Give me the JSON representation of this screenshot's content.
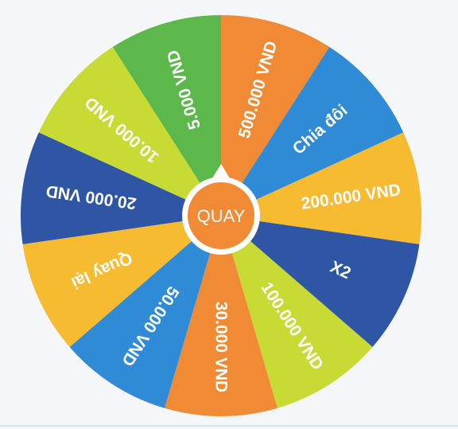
{
  "wheel": {
    "segments": [
      {
        "label": "500.000 VND",
        "color": "#f08a34"
      },
      {
        "label": "Chia đôi",
        "color": "#2f8bd6"
      },
      {
        "label": "200.000 VND",
        "color": "#f7bb31"
      },
      {
        "label": "X2",
        "color": "#2f56a5"
      },
      {
        "label": "100.000 VND",
        "color": "#c8da34"
      },
      {
        "label": "30.000 VND",
        "color": "#f08a34"
      },
      {
        "label": "50.000 VND",
        "color": "#2f8bd6"
      },
      {
        "label": "Quay lại",
        "color": "#f7bb31"
      },
      {
        "label": "20.000 VND",
        "color": "#2f56a5"
      },
      {
        "label": "10.000 VND",
        "color": "#c8da34"
      },
      {
        "label": "5.000 VND",
        "color": "#5cb84a"
      }
    ],
    "pointer_color": "#ffffff",
    "rim_color": "#ffffff"
  },
  "spin_button": {
    "label": "QUAY",
    "color": "#f08a34",
    "border_color": "#ffffff"
  }
}
